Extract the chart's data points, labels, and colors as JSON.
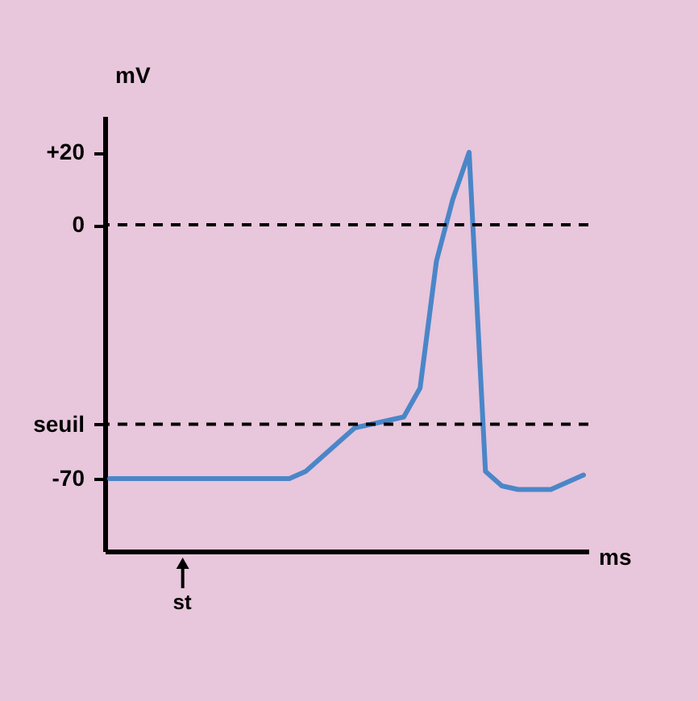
{
  "chart_data": {
    "type": "line",
    "xlabel": "ms",
    "ylabel": "mV",
    "categories": [
      null,
      null,
      null,
      null,
      null,
      null,
      null,
      null,
      null,
      null,
      null,
      null,
      null,
      null,
      null,
      null,
      null,
      null,
      null,
      null,
      null,
      null,
      null,
      null,
      null,
      null,
      null,
      null,
      null,
      null
    ],
    "series": [
      {
        "color": "#4a86c8",
        "values": [
          -70,
          -70,
          -70,
          -70,
          -70,
          -70,
          -70,
          -70,
          -70,
          -70,
          -70,
          -70,
          -68,
          -64,
          -60,
          -56,
          -55,
          -54,
          -53,
          -45,
          -10,
          7,
          20,
          -68,
          -72,
          -73,
          -73,
          -73,
          -71,
          -69
        ]
      }
    ],
    "ylim": [
      -90,
      30
    ],
    "yticks": [
      {
        "value": 20,
        "label": "+20"
      },
      0,
      {
        "value": -55,
        "label": "seuil"
      },
      -70
    ],
    "ref_lines": [
      {
        "axis": "y",
        "value": 0,
        "label": null,
        "color": "#000000",
        "line_style": "dashed"
      },
      {
        "axis": "y",
        "value": -55,
        "label": null,
        "color": "#000000",
        "line_style": "dashed"
      }
    ],
    "annotations": [
      "st"
    ],
    "marker": "none",
    "line_style": "solid"
  }
}
